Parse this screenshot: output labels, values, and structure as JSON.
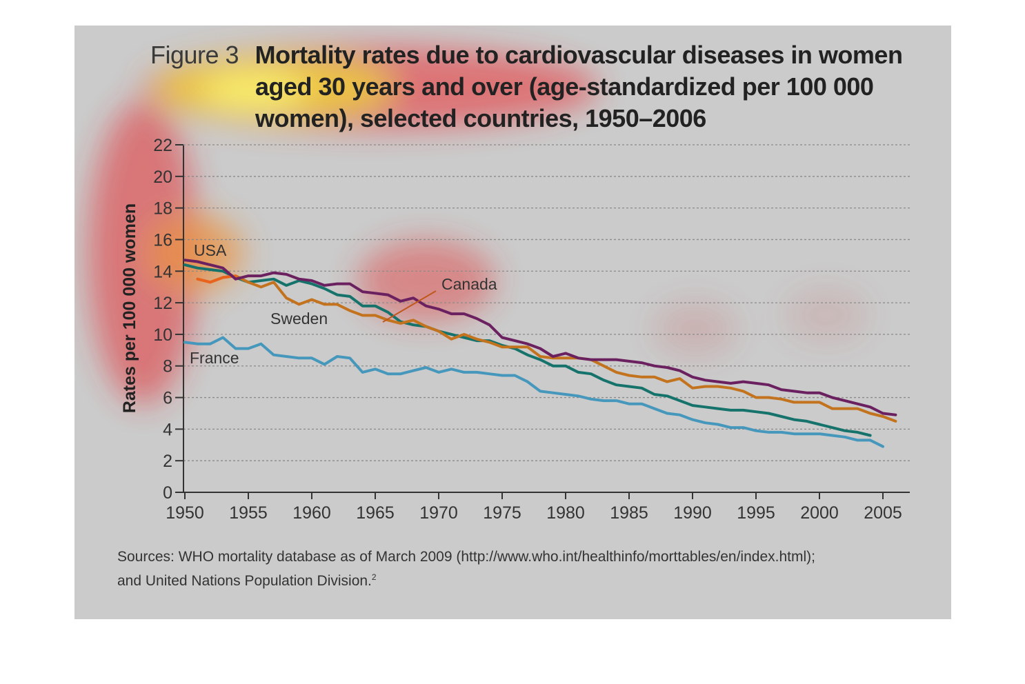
{
  "title": {
    "figure_number": "Figure 3",
    "line1": "Mortality rates due to cardiovascular diseases in women",
    "line2": "aged 30 years and over (age-standardized per 100 000",
    "line3": "women), selected countries, 1950–2006"
  },
  "sources": {
    "line1": "Sources: WHO mortality database as of March 2009 (http://www.who.int/healthinfo/morttables/en/index.html);",
    "line2": "and United Nations Population Division.",
    "footnote": "2"
  },
  "colors": {
    "usa": "#6b2160",
    "canada": "#c3731d",
    "sweden": "#15736b",
    "france": "#4697bc",
    "canada_start": "#e8641e",
    "panel": "#cbcbcb"
  },
  "chart_data": {
    "type": "line",
    "ylabel": "Rates per 100 000 women",
    "xlabel": "",
    "xlim": [
      1950,
      2007
    ],
    "ylim": [
      0,
      22
    ],
    "x_ticks": [
      1950,
      1955,
      1960,
      1965,
      1970,
      1975,
      1980,
      1985,
      1990,
      1995,
      2000,
      2005
    ],
    "y_ticks": [
      0,
      2,
      4,
      6,
      8,
      10,
      12,
      14,
      16,
      18,
      20,
      22
    ],
    "grid": true,
    "series": [
      {
        "name": "USA",
        "color_key": "usa",
        "x": [
          1950,
          1951,
          1952,
          1953,
          1954,
          1955,
          1956,
          1957,
          1958,
          1959,
          1960,
          1961,
          1962,
          1963,
          1964,
          1965,
          1966,
          1967,
          1968,
          1969,
          1970,
          1971,
          1972,
          1973,
          1974,
          1975,
          1976,
          1977,
          1978,
          1979,
          1980,
          1981,
          1982,
          1983,
          1984,
          1985,
          1986,
          1987,
          1988,
          1989,
          1990,
          1991,
          1992,
          1993,
          1994,
          1995,
          1996,
          1997,
          1998,
          1999,
          2000,
          2001,
          2002,
          2003,
          2004,
          2005,
          2006
        ],
        "y": [
          14.7,
          14.6,
          14.4,
          14.2,
          13.5,
          13.7,
          13.7,
          13.9,
          13.8,
          13.5,
          13.4,
          13.1,
          13.2,
          13.2,
          12.7,
          12.6,
          12.5,
          12.1,
          12.3,
          11.8,
          11.6,
          11.3,
          11.3,
          11.0,
          10.6,
          9.8,
          9.6,
          9.4,
          9.1,
          8.6,
          8.8,
          8.5,
          8.4,
          8.4,
          8.4,
          8.3,
          8.2,
          8.0,
          7.9,
          7.7,
          7.3,
          7.1,
          7.0,
          6.9,
          7.0,
          6.9,
          6.8,
          6.5,
          6.4,
          6.3,
          6.3,
          6.0,
          5.8,
          5.6,
          5.4,
          5.0,
          4.9
        ]
      },
      {
        "name": "Canada",
        "color_key": "canada",
        "x": [
          1951,
          1952,
          1953,
          1954,
          1955,
          1956,
          1957,
          1958,
          1959,
          1960,
          1961,
          1962,
          1963,
          1964,
          1965,
          1966,
          1967,
          1968,
          1969,
          1970,
          1971,
          1972,
          1973,
          1974,
          1975,
          1976,
          1977,
          1978,
          1979,
          1980,
          1981,
          1982,
          1983,
          1984,
          1985,
          1986,
          1987,
          1988,
          1989,
          1990,
          1991,
          1992,
          1993,
          1994,
          1995,
          1996,
          1997,
          1998,
          1999,
          2000,
          2001,
          2002,
          2003,
          2004,
          2005,
          2006
        ],
        "y": [
          13.5,
          13.3,
          13.6,
          13.7,
          13.3,
          13.0,
          13.3,
          12.3,
          11.9,
          12.2,
          11.9,
          11.9,
          11.5,
          11.2,
          11.2,
          10.9,
          10.7,
          10.9,
          10.5,
          10.2,
          9.7,
          10.0,
          9.7,
          9.5,
          9.2,
          9.2,
          9.2,
          8.6,
          8.5,
          8.5,
          8.5,
          8.4,
          8.0,
          7.6,
          7.4,
          7.3,
          7.3,
          7.0,
          7.2,
          6.6,
          6.7,
          6.7,
          6.6,
          6.4,
          6.0,
          6.0,
          5.9,
          5.7,
          5.7,
          5.7,
          5.3,
          5.3,
          5.3,
          5.0,
          4.8,
          4.5
        ]
      },
      {
        "name": "Sweden",
        "color_key": "sweden",
        "x": [
          1950,
          1951,
          1952,
          1953,
          1954,
          1955,
          1956,
          1957,
          1958,
          1959,
          1960,
          1961,
          1962,
          1963,
          1964,
          1965,
          1966,
          1967,
          1968,
          1969,
          1970,
          1971,
          1972,
          1973,
          1974,
          1975,
          1976,
          1977,
          1978,
          1979,
          1980,
          1981,
          1982,
          1983,
          1984,
          1985,
          1986,
          1987,
          1988,
          1989,
          1990,
          1991,
          1992,
          1993,
          1994,
          1995,
          1996,
          1997,
          1998,
          1999,
          2000,
          2001,
          2002,
          2003,
          2004
        ],
        "y": [
          14.4,
          14.2,
          14.1,
          14.0,
          13.6,
          13.3,
          13.4,
          13.5,
          13.1,
          13.4,
          13.2,
          12.9,
          12.5,
          12.4,
          11.8,
          11.8,
          11.4,
          10.8,
          10.6,
          10.5,
          10.2,
          10.0,
          9.8,
          9.6,
          9.6,
          9.3,
          9.1,
          8.7,
          8.4,
          8.0,
          8.0,
          7.6,
          7.5,
          7.1,
          6.8,
          6.7,
          6.6,
          6.2,
          6.1,
          5.8,
          5.5,
          5.4,
          5.3,
          5.2,
          5.2,
          5.1,
          5.0,
          4.8,
          4.6,
          4.5,
          4.3,
          4.1,
          3.9,
          3.8,
          3.6
        ]
      },
      {
        "name": "France",
        "color_key": "france",
        "x": [
          1950,
          1951,
          1952,
          1953,
          1954,
          1955,
          1956,
          1957,
          1958,
          1959,
          1960,
          1961,
          1962,
          1963,
          1964,
          1965,
          1966,
          1967,
          1968,
          1969,
          1970,
          1971,
          1972,
          1973,
          1974,
          1975,
          1976,
          1977,
          1978,
          1979,
          1980,
          1981,
          1982,
          1983,
          1984,
          1985,
          1986,
          1987,
          1988,
          1989,
          1990,
          1991,
          1992,
          1993,
          1994,
          1995,
          1996,
          1997,
          1998,
          1999,
          2000,
          2001,
          2002,
          2003,
          2004,
          2005
        ],
        "y": [
          9.5,
          9.4,
          9.4,
          9.8,
          9.1,
          9.1,
          9.4,
          8.7,
          8.6,
          8.5,
          8.5,
          8.1,
          8.6,
          8.5,
          7.6,
          7.8,
          7.5,
          7.5,
          7.7,
          7.9,
          7.6,
          7.8,
          7.6,
          7.6,
          7.5,
          7.4,
          7.4,
          7.0,
          6.4,
          6.3,
          6.2,
          6.1,
          5.9,
          5.8,
          5.8,
          5.6,
          5.6,
          5.3,
          5.0,
          4.9,
          4.6,
          4.4,
          4.3,
          4.1,
          4.1,
          3.9,
          3.8,
          3.8,
          3.7,
          3.7,
          3.7,
          3.6,
          3.5,
          3.3,
          3.3,
          2.9
        ]
      }
    ],
    "annotations": [
      "USA",
      "Canada",
      "Sweden",
      "France"
    ]
  }
}
